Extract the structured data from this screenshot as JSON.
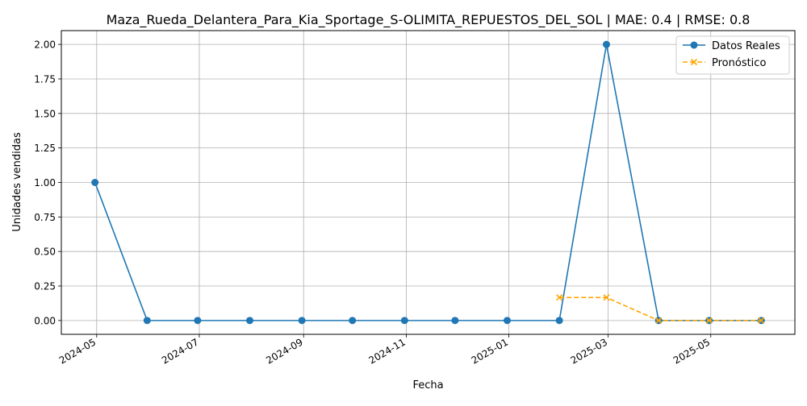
{
  "chart_data": {
    "type": "line",
    "title": "Maza_Rueda_Delantera_Para_Kia_Sportage_S-OLIMITA_REPUESTOS_DEL_SOL | MAE: 0.4 | RMSE: 0.8",
    "xlabel": "Fecha",
    "ylabel": "Unidades vendidas",
    "xlim": [
      "2024-04-10",
      "2025-06-20"
    ],
    "ylim": [
      -0.1,
      2.1
    ],
    "x_ticks": [
      "2024-05",
      "2024-07",
      "2024-09",
      "2024-11",
      "2025-01",
      "2025-03",
      "2025-05"
    ],
    "y_ticks": [
      "0.00",
      "0.25",
      "0.50",
      "0.75",
      "1.00",
      "1.25",
      "1.50",
      "1.75",
      "2.00"
    ],
    "grid": true,
    "legend_position": "top-right",
    "series": [
      {
        "name": "Datos Reales",
        "color": "#1f77b4",
        "linestyle": "solid",
        "marker": "circle",
        "x": [
          "2024-04-30",
          "2024-05-31",
          "2024-06-30",
          "2024-07-31",
          "2024-08-31",
          "2024-09-30",
          "2024-10-31",
          "2024-11-30",
          "2024-12-31",
          "2025-01-31",
          "2025-02-28",
          "2025-03-31",
          "2025-04-30",
          "2025-05-31"
        ],
        "values": [
          1,
          0,
          0,
          0,
          0,
          0,
          0,
          0,
          0,
          0,
          2,
          0,
          0,
          0
        ]
      },
      {
        "name": "Pronóstico",
        "color": "#ffa500",
        "linestyle": "dashed",
        "marker": "x",
        "x": [
          "2025-01-31",
          "2025-02-28",
          "2025-03-31",
          "2025-04-30",
          "2025-05-31"
        ],
        "values": [
          0.1667,
          0.1667,
          0,
          0,
          0
        ]
      }
    ]
  }
}
